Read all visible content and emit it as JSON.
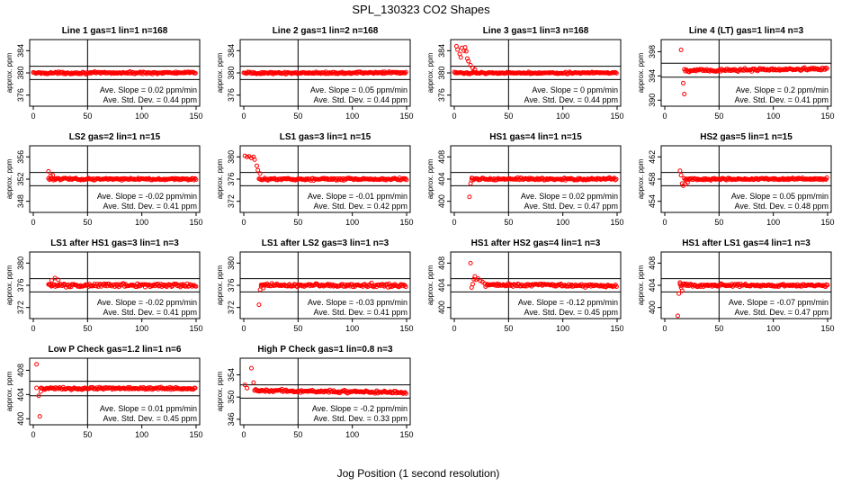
{
  "figure": {
    "title": "SPL_130323  CO2 Shapes",
    "xlabel": "Jog Position (1 second resolution)",
    "ylabel": "approx. ppm"
  },
  "chart_data": [
    {
      "type": "scatter",
      "title": "Line 1 gas=1 lin=1 n=168",
      "xlim": [
        0,
        150
      ],
      "xticks": [
        0,
        50,
        100,
        150
      ],
      "ylim": [
        374,
        386
      ],
      "yticks": [
        376,
        380,
        384
      ],
      "hlines": [
        381.2,
        378.8
      ],
      "vline": 50,
      "slope_text": "Ave. Slope = 0.02  ppm/min",
      "std_text": "Ave. Std. Dev. = 0.44  ppm",
      "start_x": 0,
      "base": 380,
      "slope": 0.0003,
      "noise": 0.18,
      "initial": []
    },
    {
      "type": "scatter",
      "title": "Line 2 gas=1 lin=2 n=168",
      "xlim": [
        0,
        150
      ],
      "xticks": [
        0,
        50,
        100,
        150
      ],
      "ylim": [
        374,
        386
      ],
      "yticks": [
        376,
        380,
        384
      ],
      "hlines": [
        381.2,
        378.8
      ],
      "vline": 50,
      "slope_text": "Ave. Slope = 0.05  ppm/min",
      "std_text": "Ave. Std. Dev. = 0.44  ppm",
      "start_x": 0,
      "base": 380,
      "slope": 0.0005,
      "noise": 0.18,
      "initial": []
    },
    {
      "type": "scatter",
      "title": "Line 3 gas=1 lin=3 n=168",
      "xlim": [
        0,
        150
      ],
      "xticks": [
        0,
        50,
        100,
        150
      ],
      "ylim": [
        374,
        386
      ],
      "yticks": [
        376,
        380,
        384
      ],
      "hlines": [
        381.2,
        378.8
      ],
      "vline": 50,
      "slope_text": "Ave. Slope = 0  ppm/min",
      "std_text": "Ave. Std. Dev. = 0.44  ppm",
      "start_x": 0,
      "base": 380,
      "slope": 0,
      "noise": 0.15,
      "initial": [
        [
          2,
          384.8
        ],
        [
          3,
          384.2
        ],
        [
          5,
          383.4
        ],
        [
          6,
          382.8
        ],
        [
          7,
          384.5
        ],
        [
          9,
          384.0
        ],
        [
          10,
          384.6
        ],
        [
          11,
          383.9
        ],
        [
          12,
          382.6
        ],
        [
          13,
          382.1
        ],
        [
          15,
          381.4
        ],
        [
          17,
          380.9
        ],
        [
          19,
          380.6
        ]
      ]
    },
    {
      "type": "scatter",
      "title": "Line 4 (LT) gas=1 lin=4 n=3",
      "xlim": [
        0,
        150
      ],
      "xticks": [
        0,
        50,
        100,
        150
      ],
      "ylim": [
        389,
        400
      ],
      "yticks": [
        390,
        394,
        398
      ],
      "hlines": [
        396.1,
        393.8
      ],
      "vline": 50,
      "slope_text": "Ave. Slope = 0.2  ppm/min",
      "std_text": "Ave. Std. Dev. = 0.41  ppm",
      "start_x": 18,
      "base": 395,
      "slope": 0.002,
      "noise": 0.25,
      "initial": [
        [
          15,
          398.3
        ],
        [
          17,
          392.8
        ],
        [
          18,
          391.0
        ]
      ]
    },
    {
      "type": "scatter",
      "title": "LS2 gas=2 lin=1 n=15",
      "xlim": [
        0,
        150
      ],
      "xticks": [
        0,
        50,
        100,
        150
      ],
      "ylim": [
        346,
        358
      ],
      "yticks": [
        348,
        352,
        356
      ],
      "hlines": [
        353.2,
        350.8
      ],
      "vline": 50,
      "slope_text": "Ave. Slope = -0.02  ppm/min",
      "std_text": "Ave. Std. Dev. = 0.41  ppm",
      "start_x": 14,
      "base": 352,
      "slope": -0.0002,
      "noise": 0.18,
      "initial": [
        [
          14,
          353.4
        ],
        [
          16,
          352.6
        ],
        [
          18,
          352.7
        ]
      ]
    },
    {
      "type": "scatter",
      "title": "LS1 gas=3 lin=1 n=15",
      "xlim": [
        0,
        150
      ],
      "xticks": [
        0,
        50,
        100,
        150
      ],
      "ylim": [
        370,
        382
      ],
      "yticks": [
        372,
        376,
        380
      ],
      "hlines": [
        377.2,
        374.8
      ],
      "vline": 50,
      "slope_text": "Ave. Slope = -0.01  ppm/min",
      "std_text": "Ave. Std. Dev. = 0.42  ppm",
      "start_x": 14,
      "base": 376,
      "slope": -0.0001,
      "noise": 0.18,
      "initial": [
        [
          1,
          380.2
        ],
        [
          3,
          380.0
        ],
        [
          5,
          380.1
        ],
        [
          7,
          379.8
        ],
        [
          9,
          380.0
        ],
        [
          10,
          379.5
        ],
        [
          12,
          378.4
        ],
        [
          13,
          377.6
        ],
        [
          15,
          377.0
        ]
      ]
    },
    {
      "type": "scatter",
      "title": "HS1 gas=4 lin=1 n=15",
      "xlim": [
        0,
        150
      ],
      "xticks": [
        0,
        50,
        100,
        150
      ],
      "ylim": [
        398,
        410
      ],
      "yticks": [
        400,
        404,
        408
      ],
      "hlines": [
        405.2,
        402.8
      ],
      "vline": 50,
      "slope_text": "Ave. Slope = 0.02  ppm/min",
      "std_text": "Ave. Std. Dev. = 0.47  ppm",
      "start_x": 16,
      "base": 404,
      "slope": 0.0002,
      "noise": 0.2,
      "initial": [
        [
          14,
          400.8
        ],
        [
          15,
          403.2
        ],
        [
          16,
          403.8
        ]
      ]
    },
    {
      "type": "scatter",
      "title": "HS2 gas=5 lin=1 n=15",
      "xlim": [
        0,
        150
      ],
      "xticks": [
        0,
        50,
        100,
        150
      ],
      "ylim": [
        452,
        464
      ],
      "yticks": [
        454,
        458,
        462
      ],
      "hlines": [
        459.2,
        456.8
      ],
      "vline": 50,
      "slope_text": "Ave. Slope = 0.05  ppm/min",
      "std_text": "Ave. Std. Dev. = 0.48  ppm",
      "start_x": 18,
      "base": 458,
      "slope": 0.0005,
      "noise": 0.2,
      "initial": [
        [
          14,
          459.5
        ],
        [
          15,
          458.7
        ],
        [
          16,
          457.2
        ],
        [
          17,
          456.8
        ],
        [
          19,
          457.1
        ],
        [
          21,
          457.4
        ]
      ]
    },
    {
      "type": "scatter",
      "title": "LS1 after HS1 gas=3 lin=1 n=3",
      "xlim": [
        0,
        150
      ],
      "xticks": [
        0,
        50,
        100,
        150
      ],
      "ylim": [
        370,
        382
      ],
      "yticks": [
        372,
        376,
        380
      ],
      "hlines": [
        377.2,
        374.8
      ],
      "vline": 50,
      "slope_text": "Ave. Slope = -0.02  ppm/min",
      "std_text": "Ave. Std. Dev. = 0.41  ppm",
      "start_x": 14,
      "base": 376,
      "slope": -0.0002,
      "noise": 0.3,
      "initial": [
        [
          15,
          376.2
        ],
        [
          17,
          376.9
        ],
        [
          20,
          377.3
        ],
        [
          23,
          377.0
        ]
      ]
    },
    {
      "type": "scatter",
      "title": "LS1 after LS2 gas=3 lin=1 n=3",
      "xlim": [
        0,
        150
      ],
      "xticks": [
        0,
        50,
        100,
        150
      ],
      "ylim": [
        370,
        382
      ],
      "yticks": [
        372,
        376,
        380
      ],
      "hlines": [
        377.2,
        374.8
      ],
      "vline": 50,
      "slope_text": "Ave. Slope = -0.03  ppm/min",
      "std_text": "Ave. Std. Dev. = 0.41  ppm",
      "start_x": 16,
      "base": 376,
      "slope": -0.0003,
      "noise": 0.3,
      "initial": [
        [
          14,
          372.5
        ],
        [
          15,
          375.2
        ],
        [
          16,
          375.8
        ],
        [
          18,
          375.5
        ]
      ]
    },
    {
      "type": "scatter",
      "title": "HS1 after HS2 gas=4 lin=1 n=3",
      "xlim": [
        0,
        150
      ],
      "xticks": [
        0,
        50,
        100,
        150
      ],
      "ylim": [
        398,
        410
      ],
      "yticks": [
        400,
        404,
        408
      ],
      "hlines": [
        405.2,
        402.8
      ],
      "vline": 50,
      "slope_text": "Ave. Slope = -0.12  ppm/min",
      "std_text": "Ave. Std. Dev. = 0.45  ppm",
      "start_x": 28,
      "base": 404,
      "slope": -0.0012,
      "noise": 0.25,
      "initial": [
        [
          15,
          408.0
        ],
        [
          16,
          403.6
        ],
        [
          17,
          404.2
        ],
        [
          18,
          405.1
        ],
        [
          19,
          405.6
        ],
        [
          20,
          405.0
        ],
        [
          22,
          405.2
        ],
        [
          24,
          404.8
        ],
        [
          26,
          404.6
        ]
      ]
    },
    {
      "type": "scatter",
      "title": "HS1 after LS1 gas=4 lin=1 n=3",
      "xlim": [
        0,
        150
      ],
      "xticks": [
        0,
        50,
        100,
        150
      ],
      "ylim": [
        398,
        410
      ],
      "yticks": [
        400,
        404,
        408
      ],
      "hlines": [
        405.2,
        402.8
      ],
      "vline": 50,
      "slope_text": "Ave. Slope = -0.07  ppm/min",
      "std_text": "Ave. Std. Dev. = 0.47  ppm",
      "start_x": 14,
      "base": 404,
      "slope": -0.0007,
      "noise": 0.25,
      "initial": [
        [
          12,
          398.5
        ],
        [
          13,
          402.5
        ],
        [
          14,
          404.5
        ],
        [
          15,
          403.6
        ],
        [
          16,
          403.0
        ]
      ]
    },
    {
      "type": "scatter",
      "title": "Low P Check gas=1.2 lin=1 n=6",
      "xlim": [
        0,
        150
      ],
      "xticks": [
        0,
        50,
        100,
        150
      ],
      "ylim": [
        399,
        410
      ],
      "yticks": [
        400,
        404,
        408
      ],
      "hlines": [
        406.2,
        403.8
      ],
      "vline": 50,
      "slope_text": "Ave. Slope = 0.01  ppm/min",
      "std_text": "Ave. Std. Dev. = 0.45  ppm",
      "start_x": 7,
      "base": 405,
      "slope": 0.0001,
      "noise": 0.2,
      "initial": [
        [
          3,
          409.0
        ],
        [
          3,
          405.1
        ],
        [
          5,
          403.8
        ],
        [
          6,
          400.4
        ],
        [
          7,
          404.5
        ]
      ]
    },
    {
      "type": "scatter",
      "title": "High P Check gas=1 lin=0.8 n=3",
      "xlim": [
        0,
        150
      ],
      "xticks": [
        0,
        50,
        100,
        150
      ],
      "ylim": [
        345,
        357
      ],
      "yticks": [
        346,
        350,
        354
      ],
      "hlines": [
        352.2,
        349.8
      ],
      "vline": 50,
      "slope_text": "Ave. Slope = -0.2  ppm/min",
      "std_text": "Ave. Std. Dev. = 0.33  ppm",
      "start_x": 10,
      "base": 351,
      "slope": -0.002,
      "noise": 0.25,
      "initial": [
        [
          1,
          352.2
        ],
        [
          3,
          351.6
        ],
        [
          7,
          355.2
        ],
        [
          9,
          352.6
        ],
        [
          10,
          351.2
        ]
      ]
    }
  ]
}
